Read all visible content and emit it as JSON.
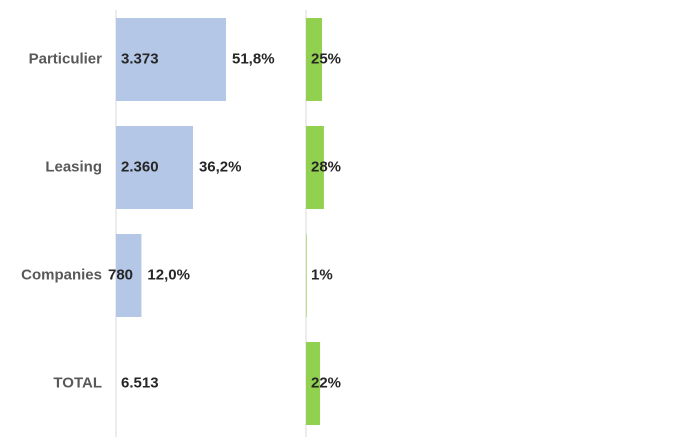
{
  "chart_data": {
    "type": "bar",
    "orientation": "horizontal",
    "categories": [
      "Particulier",
      "Leasing",
      "Companies",
      "TOTAL"
    ],
    "series": [
      {
        "values": [
          3373,
          2360,
          780,
          6513
        ],
        "value_labels": [
          "3.373",
          "2.360",
          "780",
          "6.513"
        ],
        "share_labels": [
          "51,8%",
          "36,2%",
          "12,0%",
          ""
        ],
        "share_values": [
          51.8,
          36.2,
          12.0,
          null
        ],
        "color": "#b4c7e7"
      },
      {
        "values": [
          25,
          28,
          1,
          22
        ],
        "value_labels": [
          "25%",
          "28%",
          "1%",
          "22%"
        ],
        "color": "#92d050"
      }
    ],
    "grid": false,
    "legend": "none"
  }
}
